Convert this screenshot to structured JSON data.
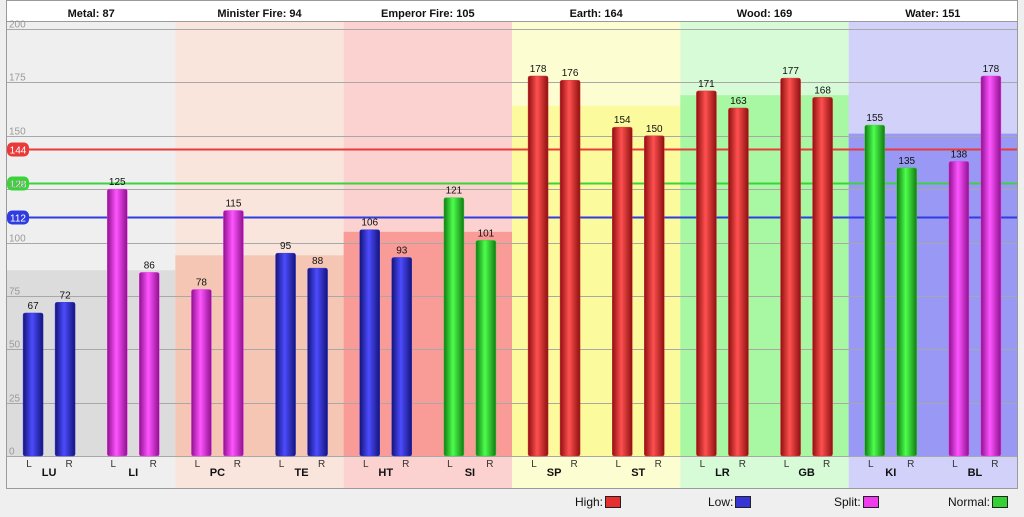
{
  "chart_data": {
    "type": "bar",
    "ylim": [
      0,
      200
    ],
    "yticks": [
      0,
      25,
      50,
      75,
      100,
      125,
      150,
      175,
      200
    ],
    "grid": true,
    "legend_position": "bottom-right",
    "groups": [
      {
        "label": "Metal: 87",
        "value": 87,
        "color": "#dcdcdc"
      },
      {
        "label": "Minister Fire: 94",
        "value": 94,
        "color": "#f5c6b4"
      },
      {
        "label": "Emperor Fire: 105",
        "value": 105,
        "color": "#f99b96"
      },
      {
        "label": "Earth: 164",
        "value": 164,
        "color": "#fbfa9c"
      },
      {
        "label": "Wood: 169",
        "value": 169,
        "color": "#a7f7a3"
      },
      {
        "label": "Water: 151",
        "value": 151,
        "color": "#9999f5"
      }
    ],
    "reference_lines": [
      {
        "value": 144,
        "label": "144",
        "color": "#e83a3a"
      },
      {
        "value": 128,
        "label": "128",
        "color": "#3ad43a"
      },
      {
        "value": 112,
        "label": "112",
        "color": "#2f3ce0"
      }
    ],
    "channels": [
      {
        "label": "LU",
        "group": 0,
        "L": 67,
        "R": 72,
        "L_status": "Low",
        "R_status": "Low"
      },
      {
        "label": "LI",
        "group": 0,
        "L": 125,
        "R": 86,
        "L_status": "Split",
        "R_status": "Split"
      },
      {
        "label": "PC",
        "group": 1,
        "L": 78,
        "R": 115,
        "L_status": "Split",
        "R_status": "Split"
      },
      {
        "label": "TE",
        "group": 1,
        "L": 95,
        "R": 88,
        "L_status": "Low",
        "R_status": "Low"
      },
      {
        "label": "HT",
        "group": 2,
        "L": 106,
        "R": 93,
        "L_status": "Low",
        "R_status": "Low"
      },
      {
        "label": "SI",
        "group": 2,
        "L": 121,
        "R": 101,
        "L_status": "Normal",
        "R_status": "Normal"
      },
      {
        "label": "SP",
        "group": 3,
        "L": 178,
        "R": 176,
        "L_status": "High",
        "R_status": "High"
      },
      {
        "label": "ST",
        "group": 3,
        "L": 154,
        "R": 150,
        "L_status": "High",
        "R_status": "High"
      },
      {
        "label": "LR",
        "group": 4,
        "L": 171,
        "R": 163,
        "L_status": "High",
        "R_status": "High"
      },
      {
        "label": "GB",
        "group": 4,
        "L": 177,
        "R": 168,
        "L_status": "High",
        "R_status": "High"
      },
      {
        "label": "KI",
        "group": 5,
        "L": 155,
        "R": 135,
        "L_status": "Normal",
        "R_status": "Normal"
      },
      {
        "label": "BL",
        "group": 5,
        "L": 138,
        "R": 178,
        "L_status": "Split",
        "R_status": "Split"
      }
    ],
    "side_labels": {
      "left": "L",
      "right": "R"
    },
    "status_colors": {
      "High": "#e62f2f",
      "Low": "#3535d6",
      "Split": "#ef3cef",
      "Normal": "#34d134"
    },
    "legend": [
      {
        "label": "High:",
        "status": "High"
      },
      {
        "label": "Low:",
        "status": "Low"
      },
      {
        "label": "Split:",
        "status": "Split"
      },
      {
        "label": "Normal:",
        "status": "Normal"
      }
    ]
  }
}
